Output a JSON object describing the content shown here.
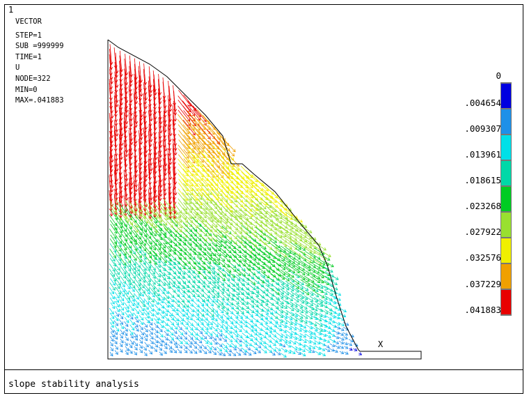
{
  "window_number": "1",
  "info_lines": [
    "VECTOR",
    "STEP=1",
    "SUB =999999",
    "TIME=1",
    "U",
    "NODE=322",
    "MIN=0",
    "MAX=.041883"
  ],
  "legend": {
    "labels": [
      "0",
      ".004654",
      ".009307",
      ".013961",
      ".018615",
      ".023268",
      ".027922",
      ".032576",
      ".037229",
      ".041883"
    ],
    "colors": [
      "#0000e0",
      "#1e90e8",
      "#00e0e8",
      "#00d8a8",
      "#00cc22",
      "#99e030",
      "#f0f000",
      "#f0a000",
      "#e80000"
    ]
  },
  "axis_marker": "X",
  "footer_title": "slope stability analysis"
}
